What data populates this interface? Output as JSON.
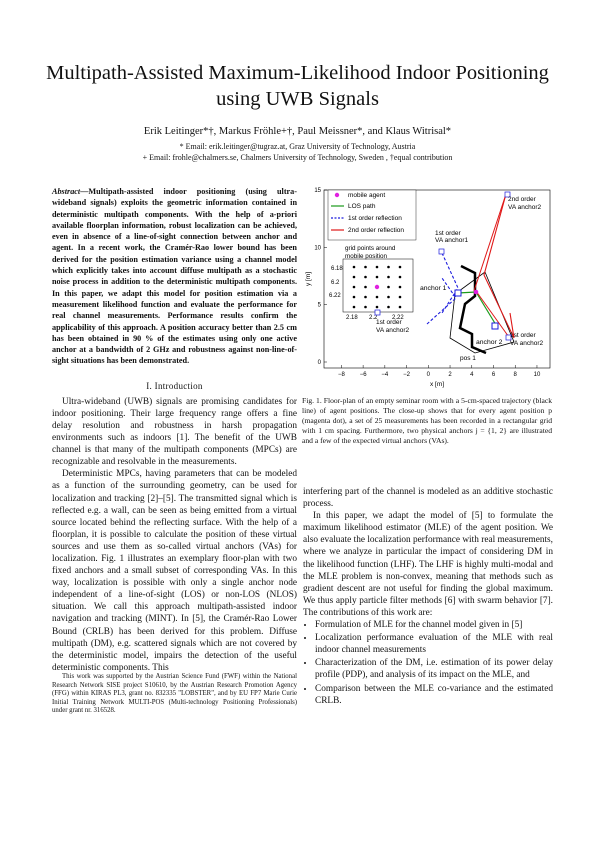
{
  "title": "Multipath-Assisted Maximum-Likelihood Indoor Positioning using UWB Signals",
  "authors": "Erik Leitinger*†, Markus Fröhle+†, Paul Meissner*, and Klaus Witrisal*",
  "affil1": "* Email: erik.leitinger@tugraz.at, Graz University of Technology, Austria",
  "affil2": "+ Email: frohle@chalmers.se, Chalmers University of Technology, Sweden , †equal contribution",
  "abstract_label": "Abstract",
  "abstract": "—Multipath-assisted indoor positioning (using ultra-wideband signals) exploits the geometric information contained in deterministic multipath components. With the help of a-priori available floorplan information, robust localization can be achieved, even in absence of a line-of-sight connection between anchor and agent. In a recent work, the Cramér-Rao lower bound has been derived for the position estimation variance using a channel model which explicitly takes into account diffuse multipath as a stochastic noise process in addition to the deterministic multipath components. In this paper, we adapt this model for position estimation via a measurement likelihood function and evaluate the performance for real channel measurements. Performance results confirm the applicability of this approach. A position accuracy better than 2.5 cm has been obtained in 90 % of the estimates using only one active anchor at a bandwidth of 2 GHz and robustness against non-line-of-sight situations has been demonstrated.",
  "section1": "I. Introduction",
  "intro_p1": "Ultra-wideband (UWB) signals are promising candidates for indoor positioning. Their large frequency range offers a fine delay resolution and robustness in harsh propagation environments such as indoors [1]. The benefit of the UWB channel is that many of the multipath components (MPCs) are recognizable and resolvable in the measurements.",
  "intro_p2": "Deterministic MPCs, having parameters that can be modeled as a function of the surrounding geometry, can be used for localization and tracking [2]–[5]. The transmitted signal which is reflected e.g. a wall, can be seen as being emitted from a virtual source located behind the reflecting surface. With the help of a floorplan, it is possible to calculate the position of these virtual sources and use them as so-called virtual anchors (VAs) for localization. Fig. 1 illustrates an exemplary floor-plan with two fixed anchors and a small subset of corresponding VAs. In this way, localization is possible with only a single anchor node independent of a line-of-sight (LOS) or non-LOS (NLOS) situation. We call this approach multipath-assisted indoor navigation and tracking (MINT). In [5], the Cramér-Rao Lower Bound (CRLB) has been derived for this problem. Diffuse multipath (DM), e.g. scattered signals which are not covered by the deterministic model, impairs the detection of the useful deterministic components. This",
  "footnote": "This work was supported by the Austrian Science Fund (FWF) within the National Research Network SISE project S10610, by the Austrian Research Promotion Agency (FFG) within KIRAS PL3, grant no. 832335 \"LOBSTER\", and by EU FP7 Marie Curie Initial Training Network MULTI-POS (Multi-technology Positioning Professionals) under grant nr. 316528.",
  "fig_caption": "Fig. 1.   Floor-plan of an empty seminar room with a 5-cm-spaced trajectory (black line) of agent positions. The close-up shows that for every agent position p (magenta dot), a set of 25 measurements has been recorded in a rectangular grid with 1 cm spacing. Furthermore, two physical anchors j = {1, 2} are illustrated and a few of the expected virtual anchors (VAs).",
  "right_p1": "interfering part of the channel is modeled as an additive stochastic process.",
  "right_p2": "In this paper, we adapt the model of [5] to formulate the maximum likelihood estimator (MLE) of the agent position. We also evaluate the localization performance with real measurements, where we analyze in particular the impact of considering DM in the likelihood function (LHF). The LHF is highly multi-modal and the MLE problem is non-convex, meaning that methods such as gradient descent are not useful for finding the global maximum. We thus apply particle filter methods [6] with swarm behavior [7]. The contributions of this work are:",
  "contributions": [
    "Formulation of MLE for the channel model given in [5]",
    "Localization performance evaluation of the MLE with real indoor channel measurements",
    "Characterization of the DM, i.e. estimation of its power delay profile (PDP), and analysis of its impact on the MLE, and",
    "Comparison between the MLE co-variance and the estimated CRLB."
  ],
  "figure": {
    "legend": [
      "mobile agent",
      "LOS path",
      "1st order reflection",
      "2nd order reflection"
    ],
    "xlabel": "x [m]",
    "ylabel": "y [m]",
    "xticks": [
      "−8",
      "−6",
      "−4",
      "−2",
      "0",
      "2",
      "4",
      "6",
      "8",
      "10"
    ],
    "yticks": [
      "0",
      "5",
      "10",
      "15"
    ],
    "grid_label_1": "grid points around",
    "grid_label_2": "mobile position",
    "grid_y": [
      "6.22",
      "6.2",
      "6.18"
    ],
    "grid_x": [
      "2.18",
      "2.2",
      "2.22"
    ],
    "anchor1": "anchor 1",
    "anchor2": "anchor 2",
    "pos1": "pos 1",
    "va_labels": [
      "1st order VA anchor1",
      "2nd order VA anchor2",
      "1st order VA anchor2",
      "1st order VA anchor2"
    ],
    "colors": {
      "agent": "#e020e0",
      "los": "#1a9a1a",
      "first": "#1a1add",
      "second": "#e01818"
    }
  }
}
